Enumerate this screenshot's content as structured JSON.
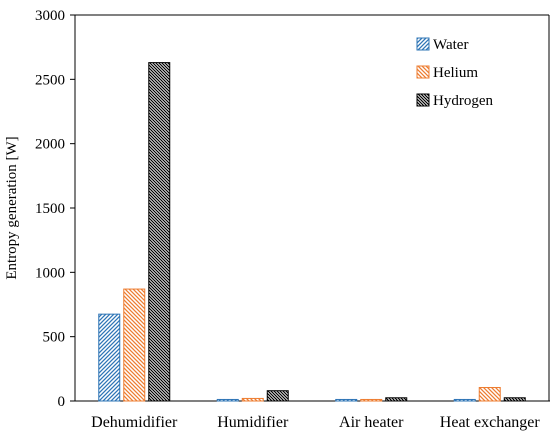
{
  "chart_data": {
    "type": "bar",
    "title": "",
    "xlabel": "",
    "ylabel": "Entropy generation [W]",
    "ylim": [
      0,
      3000
    ],
    "yticks": [
      0,
      500,
      1000,
      1500,
      2000,
      2500,
      3000
    ],
    "grid": false,
    "legend_position": "top-right",
    "categories": [
      "Dehumidifier",
      "Humidifier",
      "Air heater",
      "Heat exchanger"
    ],
    "series": [
      {
        "name": "Water",
        "color": "#2e75b6",
        "pattern": "diagonal-forward",
        "values": [
          675,
          12,
          12,
          12
        ]
      },
      {
        "name": "Helium",
        "color": "#ed7d31",
        "pattern": "diagonal-backward",
        "values": [
          870,
          20,
          12,
          105
        ]
      },
      {
        "name": "Hydrogen",
        "color": "#000000",
        "pattern": "diagonal-backward-dense",
        "values": [
          2630,
          80,
          25,
          25
        ]
      }
    ]
  }
}
